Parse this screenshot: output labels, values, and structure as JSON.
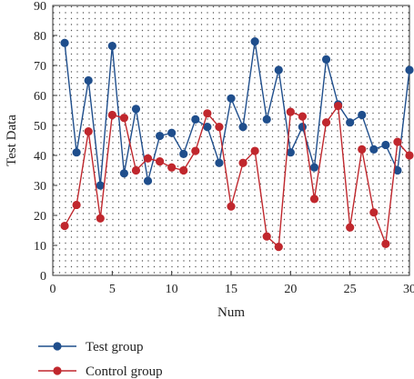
{
  "chart_data": {
    "type": "line",
    "title": "",
    "xlabel": "Num",
    "ylabel": "Test Data",
    "xlim": [
      0,
      30
    ],
    "ylim": [
      0,
      90
    ],
    "xticks": [
      0,
      5,
      10,
      15,
      20,
      25,
      30
    ],
    "yticks": [
      0,
      10,
      20,
      30,
      40,
      50,
      60,
      70,
      80,
      90
    ],
    "grid": "dotted",
    "legend_position": "bottom-left",
    "x": [
      1,
      2,
      3,
      4,
      5,
      6,
      7,
      8,
      9,
      10,
      11,
      12,
      13,
      14,
      15,
      16,
      17,
      18,
      19,
      20,
      21,
      22,
      23,
      24,
      25,
      26,
      27,
      28,
      29,
      30
    ],
    "series": [
      {
        "name": "Test group",
        "color": "#1f4e8c",
        "values": [
          77.5,
          41,
          65,
          30,
          76.5,
          34,
          55.5,
          31.5,
          46.5,
          47.5,
          40.5,
          52,
          49.5,
          37.5,
          59,
          49.5,
          78,
          52,
          68.5,
          41,
          49.5,
          36,
          72,
          57,
          51,
          53.5,
          42,
          43.5,
          35,
          68.5
        ]
      },
      {
        "name": "Control group",
        "color": "#c0272d",
        "values": [
          16.5,
          23.5,
          48,
          19,
          53.5,
          52.5,
          35,
          39,
          38,
          36,
          35,
          41.5,
          54,
          49.5,
          23,
          37.5,
          41.5,
          13,
          9.5,
          54.5,
          53,
          25.5,
          51,
          56.5,
          16,
          42,
          21,
          10.5,
          44.5,
          40
        ]
      }
    ]
  }
}
